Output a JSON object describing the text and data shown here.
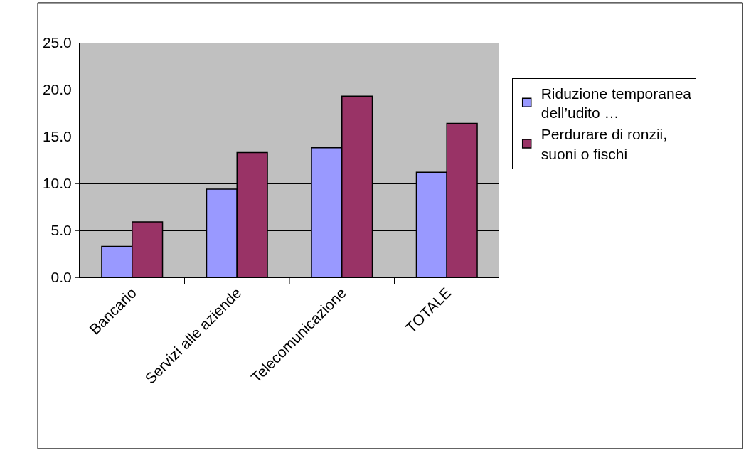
{
  "chart_data": {
    "type": "bar",
    "categories": [
      "Bancario",
      "Servizi alle aziende",
      "Telecomunicazione",
      "TOTALE"
    ],
    "series": [
      {
        "name": "Riduzione temporanea dell’udito …",
        "color": "#9999ff",
        "values": [
          3.3,
          9.4,
          13.8,
          11.2
        ]
      },
      {
        "name": "Perdurare di ronzii, suoni o fischi",
        "color": "#993366",
        "values": [
          5.9,
          13.3,
          19.3,
          16.4
        ]
      }
    ],
    "ylim": [
      0,
      25
    ],
    "yticks": [
      {
        "value": 0,
        "label": "0.0"
      },
      {
        "value": 5,
        "label": "5.0"
      },
      {
        "value": 10,
        "label": "10.0"
      },
      {
        "value": 15,
        "label": "15.0"
      },
      {
        "value": 20,
        "label": "20.0"
      },
      {
        "value": 25,
        "label": "25.0"
      }
    ],
    "grid": "y",
    "legend": "right"
  }
}
